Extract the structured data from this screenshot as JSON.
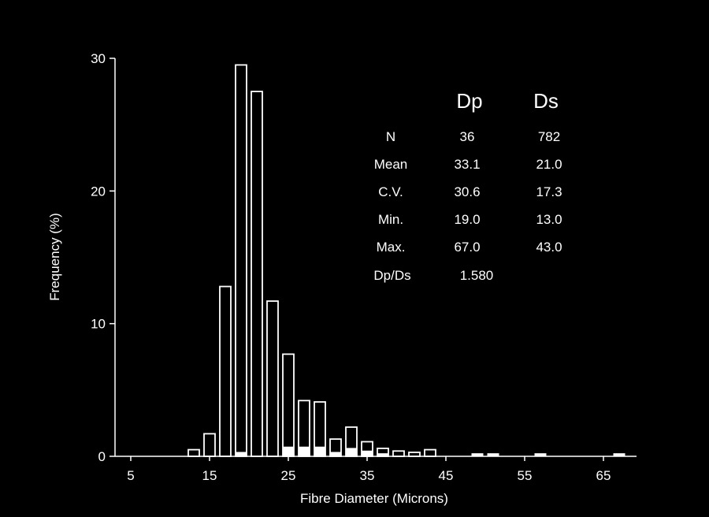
{
  "chart_data": {
    "type": "bar",
    "xlabel": "Fibre Diameter (Microns)",
    "ylabel": "Frequency (%)",
    "xlim": [
      3,
      70
    ],
    "ylim": [
      0,
      30
    ],
    "x_ticks": [
      5,
      15,
      25,
      35,
      45,
      55,
      65
    ],
    "y_ticks": [
      0,
      10,
      20,
      30
    ],
    "grid": false,
    "bin_width": 2,
    "series": [
      {
        "name": "Ds",
        "x": [
          13,
          15,
          17,
          19,
          21,
          23,
          25,
          27,
          29,
          31,
          33,
          35,
          37,
          39,
          41,
          43
        ],
        "values": [
          0.5,
          1.7,
          12.8,
          29.5,
          27.5,
          11.7,
          7.7,
          4.2,
          4.1,
          1.3,
          2.2,
          1.1,
          0.6,
          0.4,
          0.3,
          0.5
        ]
      },
      {
        "name": "Dp",
        "x": [
          19,
          25,
          27,
          29,
          31,
          33,
          35,
          37,
          49,
          51,
          57,
          67
        ],
        "values": [
          0.3,
          0.7,
          0.7,
          0.7,
          0.3,
          0.6,
          0.4,
          0.2,
          0.2,
          0.2,
          0.2,
          0.2
        ]
      }
    ]
  },
  "stats_table": {
    "headers": [
      "Dp",
      "Ds"
    ],
    "rows": [
      {
        "label": "N",
        "dp": "36",
        "ds": "782"
      },
      {
        "label": "Mean",
        "dp": "33.1",
        "ds": "21.0"
      },
      {
        "label": "C.V.",
        "dp": "30.6",
        "ds": "17.3"
      },
      {
        "label": "Min.",
        "dp": "19.0",
        "ds": "13.0"
      },
      {
        "label": "Max.",
        "dp": "67.0",
        "ds": "43.0"
      }
    ],
    "ratio_label": "Dp/Ds",
    "ratio_value": "1.580"
  },
  "colors": {
    "background": "#000000",
    "foreground": "#ffffff"
  }
}
